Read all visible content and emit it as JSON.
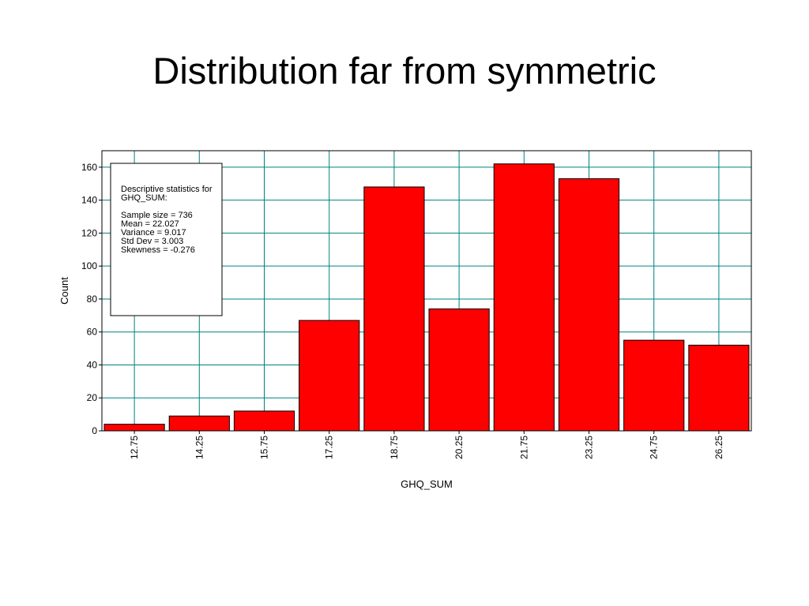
{
  "slide": {
    "title": "Distribution far from symmetric"
  },
  "stats_box": {
    "lines": [
      "Descriptive statistics for",
      "GHQ_SUM:",
      "",
      "Sample size = 736",
      "Mean = 22.027",
      "Variance = 9.017",
      "Std Dev = 3.003",
      "Skewness = -0.276"
    ]
  },
  "chart_data": {
    "type": "bar",
    "title": "",
    "xlabel": "GHQ_SUM",
    "ylabel": "Count",
    "categories": [
      "12.75",
      "14.25",
      "15.75",
      "17.25",
      "18.75",
      "20.25",
      "21.75",
      "23.25",
      "24.75",
      "26.25"
    ],
    "values": [
      4,
      9,
      12,
      67,
      148,
      74,
      162,
      153,
      55,
      52
    ],
    "ylim": [
      0,
      170
    ],
    "yticks": [
      0,
      20,
      40,
      60,
      80,
      100,
      120,
      140,
      160
    ],
    "grid": true,
    "bar_color": "#ff0000",
    "grid_color": "#008080"
  }
}
